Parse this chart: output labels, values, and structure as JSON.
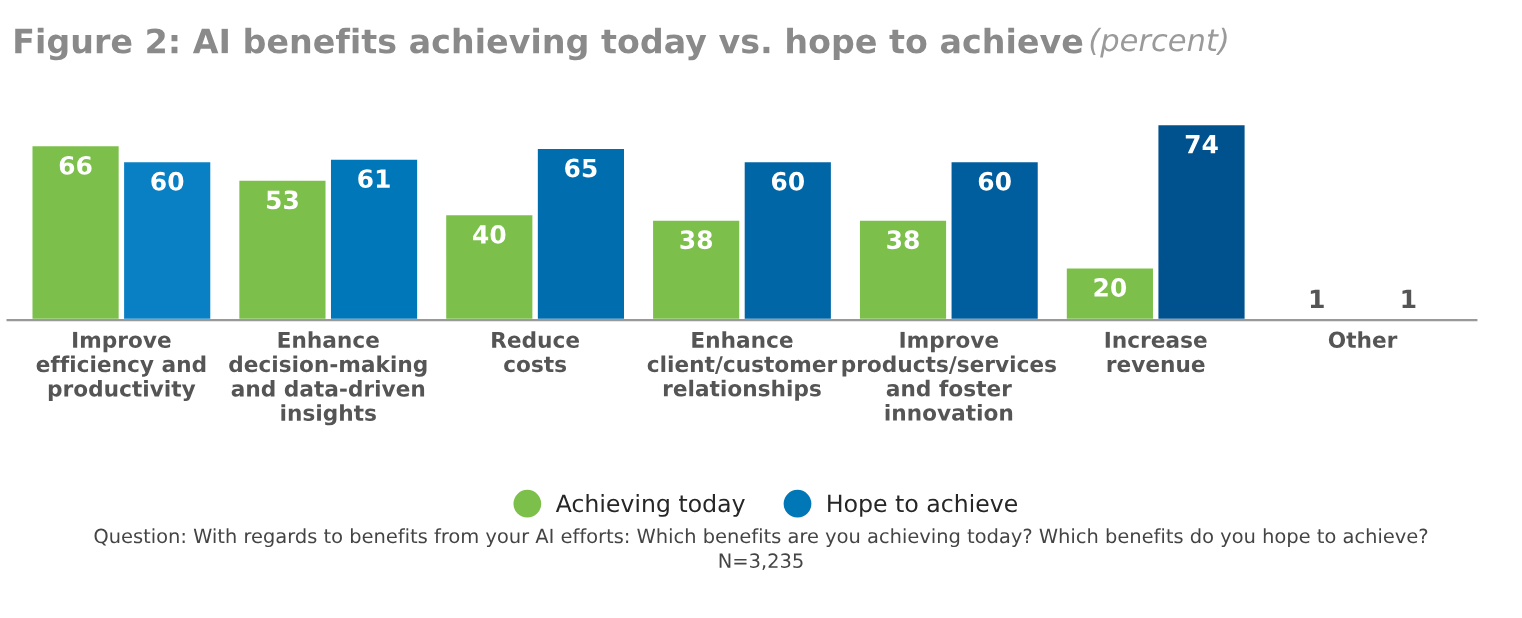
{
  "chart_data": {
    "type": "bar",
    "title": "Figure 2: AI benefits achieving today vs. hope to achieve",
    "subtitle": "(percent)",
    "categories": [
      "Improve\nefficiency and\nproductivity",
      "Enhance\ndecision-making\nand data-driven\ninsights",
      "Reduce\ncosts",
      "Enhance\nclient/customer\nrelationships",
      "Improve\nproducts/services\nand foster\ninnovation",
      "Increase\nrevenue",
      "Other"
    ],
    "series": [
      {
        "name": "Achieving today",
        "color": "#7cc04b",
        "values": [
          66,
          53,
          40,
          38,
          38,
          20,
          1
        ]
      },
      {
        "name": "Hope to achieve",
        "color": "#0077b6",
        "colors": [
          "#0a80c4",
          "#0077b8",
          "#006eae",
          "#0066a6",
          "#005e9e",
          "#00528e",
          "#0a6aa8"
        ],
        "values": [
          60,
          61,
          65,
          60,
          60,
          74,
          1
        ]
      }
    ],
    "data_labels": true,
    "legend": "bottom",
    "annotations": [
      "Question: With regards to benefits from your AI efforts: Which benefits are you achieving today? Which benefits do you hope to achieve?",
      "N=3,235"
    ]
  }
}
